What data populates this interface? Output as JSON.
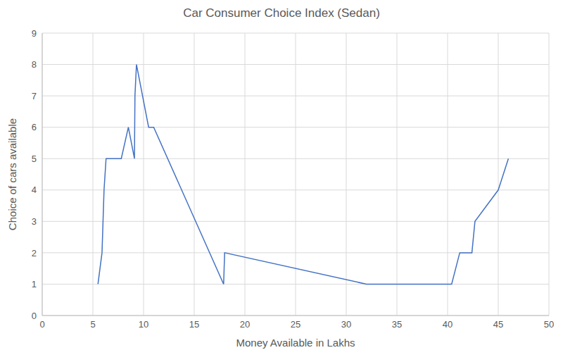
{
  "chart_data": {
    "type": "line",
    "title": "Car Consumer Choice Index (Sedan)",
    "xlabel": "Money Available in Lakhs",
    "ylabel": "Choice of cars available",
    "x": [
      5.5,
      5.9,
      6.0,
      6.1,
      6.3,
      7.8,
      8.5,
      9.1,
      9.15,
      9.3,
      10.5,
      11,
      17.9,
      18,
      32,
      40.4,
      41.2,
      42.4,
      42.7,
      45,
      46
    ],
    "values": [
      1,
      2,
      3,
      4,
      5,
      5,
      6,
      5,
      7,
      8,
      6,
      6,
      1,
      2,
      1,
      1,
      2,
      2,
      3,
      4,
      5
    ],
    "color": "#4472c4",
    "marker": "none",
    "xlim": [
      0,
      50
    ],
    "xticks": [
      0,
      5,
      10,
      15,
      20,
      25,
      30,
      35,
      40,
      45,
      50
    ],
    "ylim": [
      0,
      9
    ],
    "yticks": [
      0,
      1,
      2,
      3,
      4,
      5,
      6,
      7,
      8,
      9
    ],
    "grid": true
  }
}
